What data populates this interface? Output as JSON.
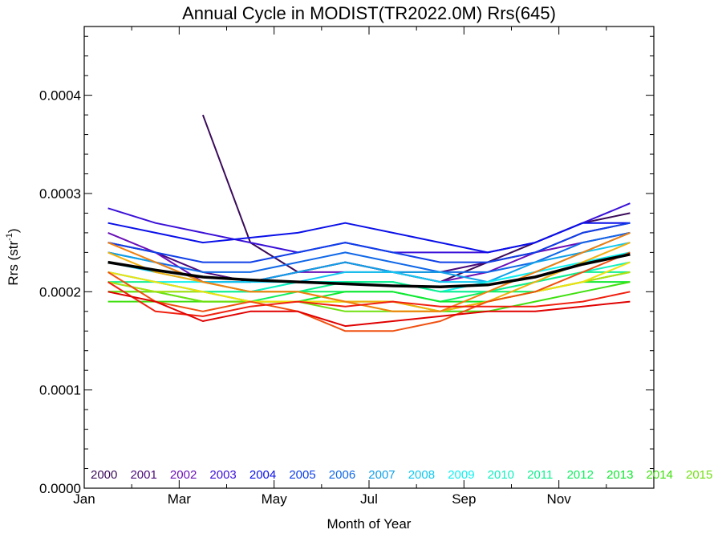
{
  "chart_data": {
    "type": "line",
    "title": "Annual Cycle in MODIST(TR2022.0M) Rrs(645)",
    "xlabel": "Month of Year",
    "ylabel": {
      "main": "Rrs (str",
      "sup": "-1",
      "close": ")"
    },
    "xlim": [
      1,
      13
    ],
    "ylim": [
      0,
      0.00047
    ],
    "x_ticks": [
      {
        "value": 1,
        "label": "Jan"
      },
      {
        "value": 3,
        "label": "Mar"
      },
      {
        "value": 5,
        "label": "May"
      },
      {
        "value": 7,
        "label": "Jul"
      },
      {
        "value": 9,
        "label": "Sep"
      },
      {
        "value": 11,
        "label": "Nov"
      }
    ],
    "y_ticks": [
      {
        "value": 0,
        "label": "0.0000"
      },
      {
        "value": 0.0001,
        "label": "0.0001"
      },
      {
        "value": 0.0002,
        "label": "0.0002"
      },
      {
        "value": 0.0003,
        "label": "0.0003"
      },
      {
        "value": 0.0004,
        "label": "0.0004"
      }
    ],
    "x_points": [
      1.5,
      2.5,
      3.5,
      4.5,
      5.5,
      6.5,
      7.5,
      8.5,
      9.5,
      10.5,
      11.5,
      12.5
    ],
    "series": [
      {
        "name": "2000",
        "color": "#3a0a5a",
        "values": [
          null,
          null,
          0.00038,
          0.00025,
          0.00022,
          0.00023,
          0.00022,
          0.00021,
          0.00023,
          0.00025,
          0.00027,
          0.00028
        ]
      },
      {
        "name": "2001",
        "color": "#4a0a7a",
        "values": [
          0.00025,
          0.00024,
          0.00022,
          0.00021,
          0.00022,
          0.00023,
          0.00022,
          0.00022,
          0.00023,
          0.00024,
          0.00026,
          0.00027
        ]
      },
      {
        "name": "2002",
        "color": "#6a10b8",
        "values": [
          0.00026,
          0.00024,
          0.00021,
          0.00021,
          0.00022,
          0.00022,
          0.00022,
          0.00021,
          0.00022,
          0.00024,
          0.00025,
          0.00026
        ]
      },
      {
        "name": "2003",
        "color": "#3a10d8",
        "values": [
          0.000285,
          0.00027,
          0.00026,
          0.00025,
          0.00024,
          0.00025,
          0.00024,
          0.00024,
          0.00024,
          0.00025,
          0.00027,
          0.00029
        ]
      },
      {
        "name": "2004",
        "color": "#0a10e8",
        "values": [
          0.00027,
          0.00026,
          0.00025,
          0.000255,
          0.00026,
          0.00027,
          0.00026,
          0.00025,
          0.00024,
          0.00025,
          0.00027,
          0.00027
        ]
      },
      {
        "name": "2005",
        "color": "#1040e8",
        "values": [
          0.00025,
          0.00024,
          0.00023,
          0.00023,
          0.00024,
          0.00025,
          0.00024,
          0.00023,
          0.00023,
          0.00024,
          0.00026,
          0.00027
        ]
      },
      {
        "name": "2006",
        "color": "#1068e8",
        "values": [
          0.00024,
          0.00023,
          0.00022,
          0.00022,
          0.00023,
          0.00024,
          0.00023,
          0.00022,
          0.00022,
          0.00023,
          0.00025,
          0.00026
        ]
      },
      {
        "name": "2007",
        "color": "#10a0e8",
        "values": [
          0.00024,
          0.00023,
          0.00021,
          0.00021,
          0.00022,
          0.00023,
          0.00022,
          0.00022,
          0.00021,
          0.00023,
          0.00024,
          0.00026
        ]
      },
      {
        "name": "2008",
        "color": "#10c8f0",
        "values": [
          0.00023,
          0.00022,
          0.00021,
          0.00021,
          0.00021,
          0.00022,
          0.00022,
          0.00021,
          0.00021,
          0.00022,
          0.00024,
          0.00025
        ]
      },
      {
        "name": "2009",
        "color": "#10f0f0",
        "values": [
          0.00022,
          0.00021,
          0.00021,
          0.0002,
          0.00021,
          0.00021,
          0.00021,
          0.0002,
          0.00021,
          0.00022,
          0.00023,
          0.00024
        ]
      },
      {
        "name": "2010",
        "color": "#10f0c0",
        "values": [
          0.00022,
          0.00021,
          0.0002,
          0.0002,
          0.00021,
          0.00021,
          0.00021,
          0.0002,
          0.0002,
          0.00021,
          0.00022,
          0.00023
        ]
      },
      {
        "name": "2011",
        "color": "#10f090",
        "values": [
          0.00021,
          0.00021,
          0.0002,
          0.0002,
          0.0002,
          0.00021,
          0.00021,
          0.0002,
          0.0002,
          0.00021,
          0.00022,
          0.00022
        ]
      },
      {
        "name": "2012",
        "color": "#10f060",
        "values": [
          0.00021,
          0.0002,
          0.0002,
          0.00019,
          0.0002,
          0.0002,
          0.0002,
          0.00019,
          0.0002,
          0.0002,
          0.00021,
          0.00022
        ]
      },
      {
        "name": "2013",
        "color": "#10e830",
        "values": [
          0.0002,
          0.0002,
          0.00019,
          0.00019,
          0.00019,
          0.0002,
          0.0002,
          0.00019,
          0.00019,
          0.0002,
          0.00021,
          0.00021
        ]
      },
      {
        "name": "2014",
        "color": "#40e010",
        "values": [
          0.00019,
          0.00019,
          0.00019,
          0.00019,
          0.00019,
          0.00019,
          0.00019,
          0.00018,
          0.00018,
          0.00019,
          0.0002,
          0.00021
        ]
      },
      {
        "name": "2015",
        "color": "#70e010",
        "values": [
          0.0002,
          0.0002,
          0.00019,
          0.00019,
          0.00019,
          0.00018,
          0.00018,
          0.00018,
          0.00019,
          0.0002,
          0.00021,
          0.00022
        ]
      },
      {
        "name": "",
        "color": "#b0e010",
        "values": [
          0.00021,
          0.0002,
          0.0002,
          0.00019,
          0.00019,
          0.00019,
          0.00019,
          0.00018,
          0.00019,
          0.0002,
          0.00021,
          0.00022
        ]
      },
      {
        "name": "",
        "color": "#f0e010",
        "values": [
          0.00022,
          0.00021,
          0.0002,
          0.00019,
          0.00019,
          0.00019,
          0.00018,
          0.00018,
          0.00019,
          0.0002,
          0.00021,
          0.00023
        ]
      },
      {
        "name": "",
        "color": "#f0b010",
        "values": [
          0.00024,
          0.00022,
          0.00021,
          0.0002,
          0.0002,
          0.00019,
          0.00019,
          0.00018,
          0.00019,
          0.00021,
          0.00023,
          0.00025
        ]
      },
      {
        "name": "",
        "color": "#f08010",
        "values": [
          0.00025,
          0.00023,
          0.00021,
          0.0002,
          0.0002,
          0.00019,
          0.00018,
          0.00018,
          0.0002,
          0.00022,
          0.00024,
          0.00026
        ]
      },
      {
        "name": "",
        "color": "#f05010",
        "values": [
          0.00022,
          0.00019,
          0.00018,
          0.00019,
          0.00018,
          0.00016,
          0.00016,
          0.00017,
          0.00019,
          0.0002,
          0.00022,
          0.00024
        ]
      },
      {
        "name": "",
        "color": "#f02010",
        "values": [
          0.00021,
          0.00018,
          0.000175,
          0.000185,
          0.00019,
          0.000185,
          0.00019,
          0.000185,
          0.000185,
          0.000185,
          0.00019,
          0.0002
        ]
      },
      {
        "name": "",
        "color": "#e00000",
        "values": [
          0.0002,
          0.00019,
          0.00017,
          0.00018,
          0.00018,
          0.000165,
          0.00017,
          0.000175,
          0.00018,
          0.00018,
          0.000185,
          0.00019
        ]
      }
    ],
    "climatology": {
      "color": "#000000",
      "values": [
        0.00023,
        0.000222,
        0.000215,
        0.000212,
        0.00021,
        0.000208,
        0.000206,
        0.000205,
        0.000207,
        0.000215,
        0.000228,
        0.000238
      ]
    },
    "legend": {
      "placement": "bottom-inside",
      "entries": [
        {
          "label": "2000",
          "color": "#3a0a5a"
        },
        {
          "label": "2001",
          "color": "#4a0a7a"
        },
        {
          "label": "2002",
          "color": "#6a10b8"
        },
        {
          "label": "2003",
          "color": "#3a10d8"
        },
        {
          "label": "2004",
          "color": "#0a10e8"
        },
        {
          "label": "2005",
          "color": "#1040e8"
        },
        {
          "label": "2006",
          "color": "#1068e8"
        },
        {
          "label": "2007",
          "color": "#10a0e8"
        },
        {
          "label": "2008",
          "color": "#10c8f0"
        },
        {
          "label": "2009",
          "color": "#10f0f0"
        },
        {
          "label": "2010",
          "color": "#10f0c0"
        },
        {
          "label": "2011",
          "color": "#10f090"
        },
        {
          "label": "2012",
          "color": "#10f060"
        },
        {
          "label": "2013",
          "color": "#10e830"
        },
        {
          "label": "2014",
          "color": "#40e010"
        },
        {
          "label": "2015",
          "color": "#70e010"
        }
      ]
    },
    "grid": false
  }
}
